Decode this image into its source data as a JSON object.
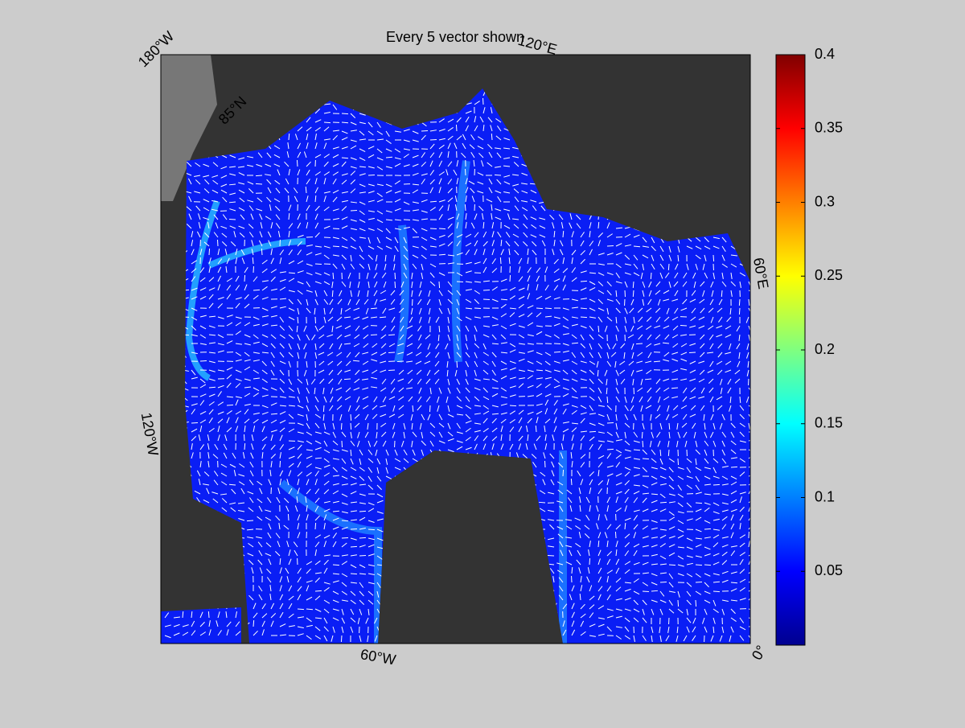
{
  "map": {
    "title": "Every 5 vector shown",
    "lon_labels": [
      "180°W",
      "120°E",
      "60°E",
      "0°",
      "60°W",
      "120°W"
    ],
    "lat_labels": [
      "85°N"
    ],
    "colorbar": {
      "colormap": "jet",
      "lim": [
        0,
        0.4
      ],
      "ticks": [
        0.05,
        0.1,
        0.15,
        0.2,
        0.25,
        0.3,
        0.35,
        0.4
      ]
    }
  }
}
